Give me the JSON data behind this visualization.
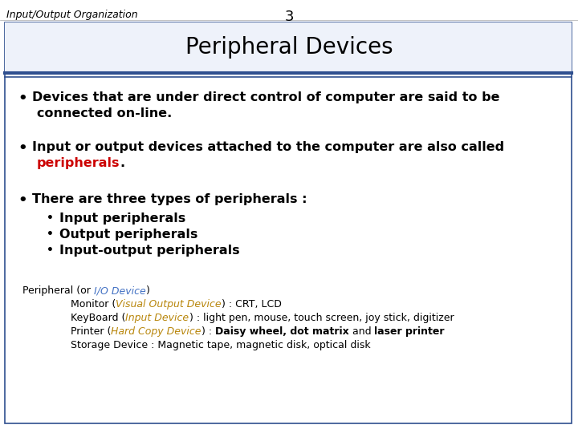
{
  "header_left": "Input/Output Organization",
  "header_number": "3",
  "slide_title": "Peripheral Devices",
  "bg_color": "#ffffff",
  "border_color": "#2F4F8F",
  "title_bg_color": "#EEF2FA",
  "body_color": "#000000",
  "red_color": "#CC0000",
  "gold_color": "#B8860B",
  "blue_color": "#4472C4",
  "bullet1_line1": "Devices that are under direct control of computer are said to be",
  "bullet1_line2": "connected on-line.",
  "bullet2_line1": "Input or output devices attached to the computer are also called",
  "bullet2_red": "peripherals",
  "bullet2_period": ".",
  "bullet3_main": "There are three types of peripherals :",
  "sub_bullet1": "Input peripherals",
  "sub_bullet2": "Output peripherals",
  "sub_bullet3": "Input-output peripherals"
}
